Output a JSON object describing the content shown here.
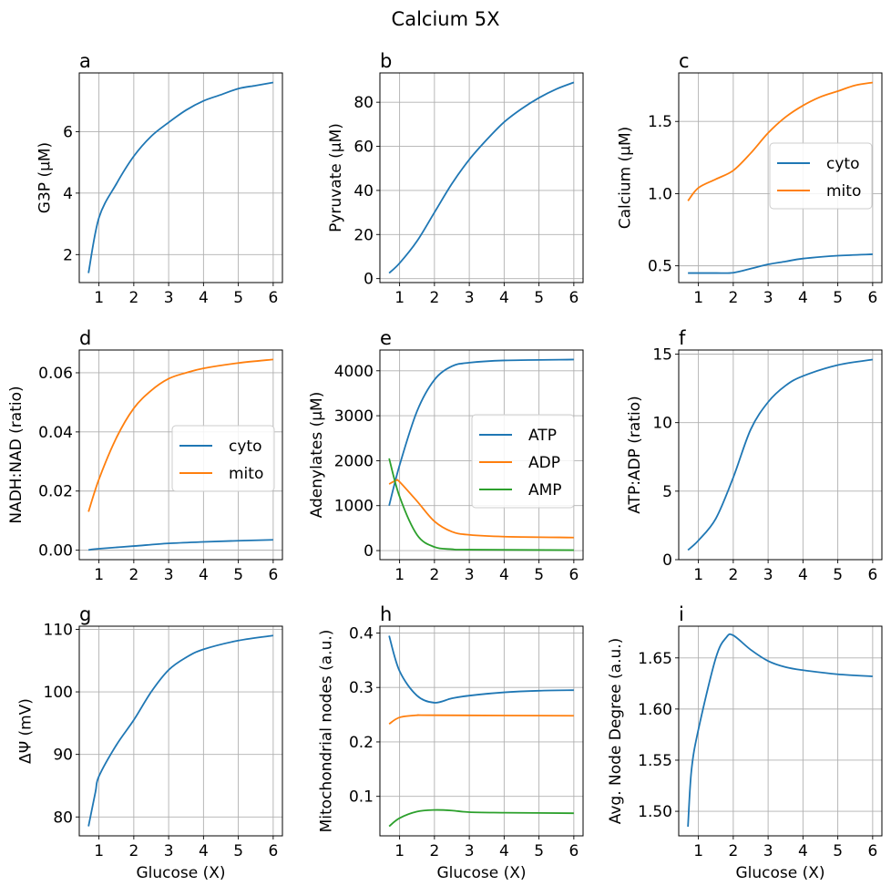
{
  "figure": {
    "title": "Calcium 5X"
  },
  "colors": {
    "blue": "#1f77b4",
    "orange": "#ff7f0e",
    "green": "#2ca02c",
    "grid": "#b0b0b0"
  },
  "chart_data": [
    {
      "panel": "a",
      "type": "line",
      "xlabel": "",
      "ylabel": "G3P (µM)",
      "xlim": [
        0.435,
        6.265
      ],
      "ylim": [
        1.09,
        7.91
      ],
      "xticks": [
        1,
        2,
        3,
        4,
        5,
        6
      ],
      "yticks": [
        2,
        4,
        6
      ],
      "grid": true,
      "legend": null,
      "series": [
        {
          "color": "blue",
          "x": [
            0.7,
            1,
            1.5,
            2,
            2.5,
            3,
            3.5,
            4,
            4.5,
            5,
            5.5,
            6
          ],
          "y": [
            1.4,
            3.2,
            4.3,
            5.2,
            5.85,
            6.3,
            6.7,
            7.0,
            7.2,
            7.4,
            7.5,
            7.6
          ]
        }
      ]
    },
    {
      "panel": "b",
      "type": "line",
      "xlabel": "",
      "ylabel": "Pyruvate (µM)",
      "xlim": [
        0.435,
        6.265
      ],
      "ylim": [
        -1.8,
        93.3
      ],
      "xticks": [
        1,
        2,
        3,
        4,
        5,
        6
      ],
      "yticks": [
        0,
        20,
        40,
        60,
        80
      ],
      "grid": true,
      "legend": null,
      "series": [
        {
          "color": "blue",
          "x": [
            0.7,
            1,
            1.5,
            2,
            2.5,
            3,
            3.5,
            4,
            4.5,
            5,
            5.5,
            6
          ],
          "y": [
            2.5,
            7,
            17,
            30,
            43,
            54,
            63,
            71,
            77,
            82,
            86,
            89
          ]
        }
      ]
    },
    {
      "panel": "c",
      "type": "line",
      "xlabel": "",
      "ylabel": "Calcium (µM)",
      "xlim": [
        0.435,
        6.265
      ],
      "ylim": [
        0.384,
        1.836
      ],
      "xticks": [
        1,
        2,
        3,
        4,
        5,
        6
      ],
      "yticks": [
        0.5,
        1.0,
        1.5
      ],
      "yfmt": 1,
      "grid": true,
      "legend": "center-right",
      "series": [
        {
          "name": "cyto",
          "color": "blue",
          "x": [
            0.7,
            1,
            1.5,
            2,
            2.5,
            3,
            3.5,
            4,
            5,
            6
          ],
          "y": [
            0.45,
            0.45,
            0.45,
            0.452,
            0.48,
            0.51,
            0.53,
            0.55,
            0.57,
            0.58
          ]
        },
        {
          "name": "mito",
          "color": "orange",
          "x": [
            0.7,
            1,
            1.5,
            2,
            2.5,
            3,
            3.5,
            4,
            4.5,
            5,
            5.5,
            6
          ],
          "y": [
            0.95,
            1.04,
            1.1,
            1.16,
            1.28,
            1.42,
            1.53,
            1.61,
            1.67,
            1.71,
            1.75,
            1.77
          ]
        }
      ]
    },
    {
      "panel": "d",
      "type": "line",
      "xlabel": "",
      "ylabel": "NADH:NAD (ratio)",
      "xlim": [
        0.435,
        6.265
      ],
      "ylim": [
        -0.0032,
        0.0677
      ],
      "xticks": [
        1,
        2,
        3,
        4,
        5,
        6
      ],
      "yticks": [
        0,
        0.02,
        0.04,
        0.06
      ],
      "yfmt": 2,
      "grid": true,
      "legend": "center-right",
      "series": [
        {
          "name": "cyto",
          "color": "blue",
          "x": [
            0.7,
            1,
            2,
            3,
            4,
            5,
            6
          ],
          "y": [
            0.0001,
            0.0005,
            0.0014,
            0.0023,
            0.0028,
            0.0032,
            0.0035
          ]
        },
        {
          "name": "mito",
          "color": "orange",
          "x": [
            0.7,
            1,
            1.5,
            2,
            2.5,
            3,
            3.5,
            4,
            5,
            6
          ],
          "y": [
            0.013,
            0.024,
            0.038,
            0.048,
            0.054,
            0.058,
            0.06,
            0.0615,
            0.0633,
            0.0645
          ]
        }
      ]
    },
    {
      "panel": "e",
      "type": "line",
      "xlabel": "",
      "ylabel": "Adenylates (µM)",
      "xlim": [
        0.435,
        6.265
      ],
      "ylim": [
        -202,
        4462
      ],
      "xticks": [
        1,
        2,
        3,
        4,
        5,
        6
      ],
      "yticks": [
        0,
        1000,
        2000,
        3000,
        4000
      ],
      "grid": true,
      "legend": "center-right",
      "series": [
        {
          "name": "ATP",
          "color": "blue",
          "x": [
            0.7,
            1,
            1.5,
            2,
            2.5,
            3,
            4,
            6
          ],
          "y": [
            1000,
            1900,
            3100,
            3800,
            4100,
            4180,
            4230,
            4250
          ]
        },
        {
          "name": "ADP",
          "color": "orange",
          "x": [
            0.7,
            0.9,
            1,
            1.5,
            2,
            2.5,
            3,
            4,
            6
          ],
          "y": [
            1480,
            1560,
            1530,
            1100,
            650,
            420,
            350,
            310,
            290
          ]
        },
        {
          "name": "AMP",
          "color": "green",
          "x": [
            0.7,
            1,
            1.5,
            2,
            2.5,
            3,
            6
          ],
          "y": [
            2050,
            1200,
            350,
            80,
            30,
            20,
            10
          ]
        }
      ]
    },
    {
      "panel": "f",
      "type": "line",
      "xlabel": "",
      "ylabel": "ATP:ADP (ratio)",
      "xlim": [
        0.435,
        6.265
      ],
      "ylim": [
        0,
        15.3
      ],
      "xticks": [
        1,
        2,
        3,
        4,
        5,
        6
      ],
      "yticks": [
        0,
        5,
        10,
        15
      ],
      "grid": true,
      "legend": null,
      "series": [
        {
          "color": "blue",
          "x": [
            0.7,
            1,
            1.5,
            2,
            2.5,
            3,
            3.5,
            4,
            5,
            6
          ],
          "y": [
            0.7,
            1.4,
            3,
            6,
            9.5,
            11.5,
            12.7,
            13.4,
            14.2,
            14.6
          ]
        }
      ]
    },
    {
      "panel": "g",
      "type": "line",
      "xlabel": "Glucose (X)",
      "ylabel": "ΔΨ (mV)",
      "xlim": [
        0.435,
        6.265
      ],
      "ylim": [
        76.98,
        110.5
      ],
      "xticks": [
        1,
        2,
        3,
        4,
        5,
        6
      ],
      "yticks": [
        80,
        90,
        100,
        110
      ],
      "grid": true,
      "legend": null,
      "series": [
        {
          "color": "blue",
          "x": [
            0.7,
            0.9,
            1,
            1.5,
            2,
            2.5,
            3,
            3.5,
            4,
            5,
            6
          ],
          "y": [
            78.5,
            84,
            86.5,
            91.5,
            95.5,
            100,
            103.5,
            105.5,
            106.8,
            108.2,
            109
          ]
        }
      ]
    },
    {
      "panel": "h",
      "type": "line",
      "xlabel": "Glucose (X)",
      "ylabel": "Mitochondrial nodes (a.u.)",
      "xlim": [
        0.435,
        6.265
      ],
      "ylim": [
        0.0275,
        0.4125
      ],
      "xticks": [
        1,
        2,
        3,
        4,
        5,
        6
      ],
      "yticks": [
        0.1,
        0.2,
        0.3,
        0.4
      ],
      "yfmt": 1,
      "grid": true,
      "legend": null,
      "series": [
        {
          "color": "blue",
          "x": [
            0.7,
            1,
            1.5,
            2,
            2.5,
            3,
            4,
            5,
            6
          ],
          "y": [
            0.395,
            0.33,
            0.285,
            0.272,
            0.28,
            0.285,
            0.291,
            0.294,
            0.295
          ]
        },
        {
          "color": "orange",
          "x": [
            0.7,
            1,
            1.5,
            2,
            6
          ],
          "y": [
            0.233,
            0.245,
            0.249,
            0.249,
            0.248
          ]
        },
        {
          "color": "green",
          "x": [
            0.7,
            1,
            1.5,
            2,
            2.5,
            3,
            4,
            6
          ],
          "y": [
            0.045,
            0.06,
            0.072,
            0.075,
            0.074,
            0.071,
            0.07,
            0.069
          ]
        }
      ]
    },
    {
      "panel": "i",
      "type": "line",
      "xlabel": "Glucose (X)",
      "ylabel": "Avg. Node Degree (a.u.)",
      "xlim": [
        0.435,
        6.265
      ],
      "ylim": [
        1.476,
        1.681
      ],
      "xticks": [
        1,
        2,
        3,
        4,
        5,
        6
      ],
      "yticks": [
        1.5,
        1.55,
        1.6,
        1.65
      ],
      "yfmt": 2,
      "grid": true,
      "legend": null,
      "series": [
        {
          "color": "blue",
          "x": [
            0.7,
            0.8,
            1,
            1.5,
            1.8,
            2,
            2.5,
            3,
            3.5,
            4,
            5,
            6
          ],
          "y": [
            1.485,
            1.54,
            1.58,
            1.65,
            1.67,
            1.672,
            1.658,
            1.647,
            1.641,
            1.638,
            1.634,
            1.632
          ]
        }
      ]
    }
  ]
}
